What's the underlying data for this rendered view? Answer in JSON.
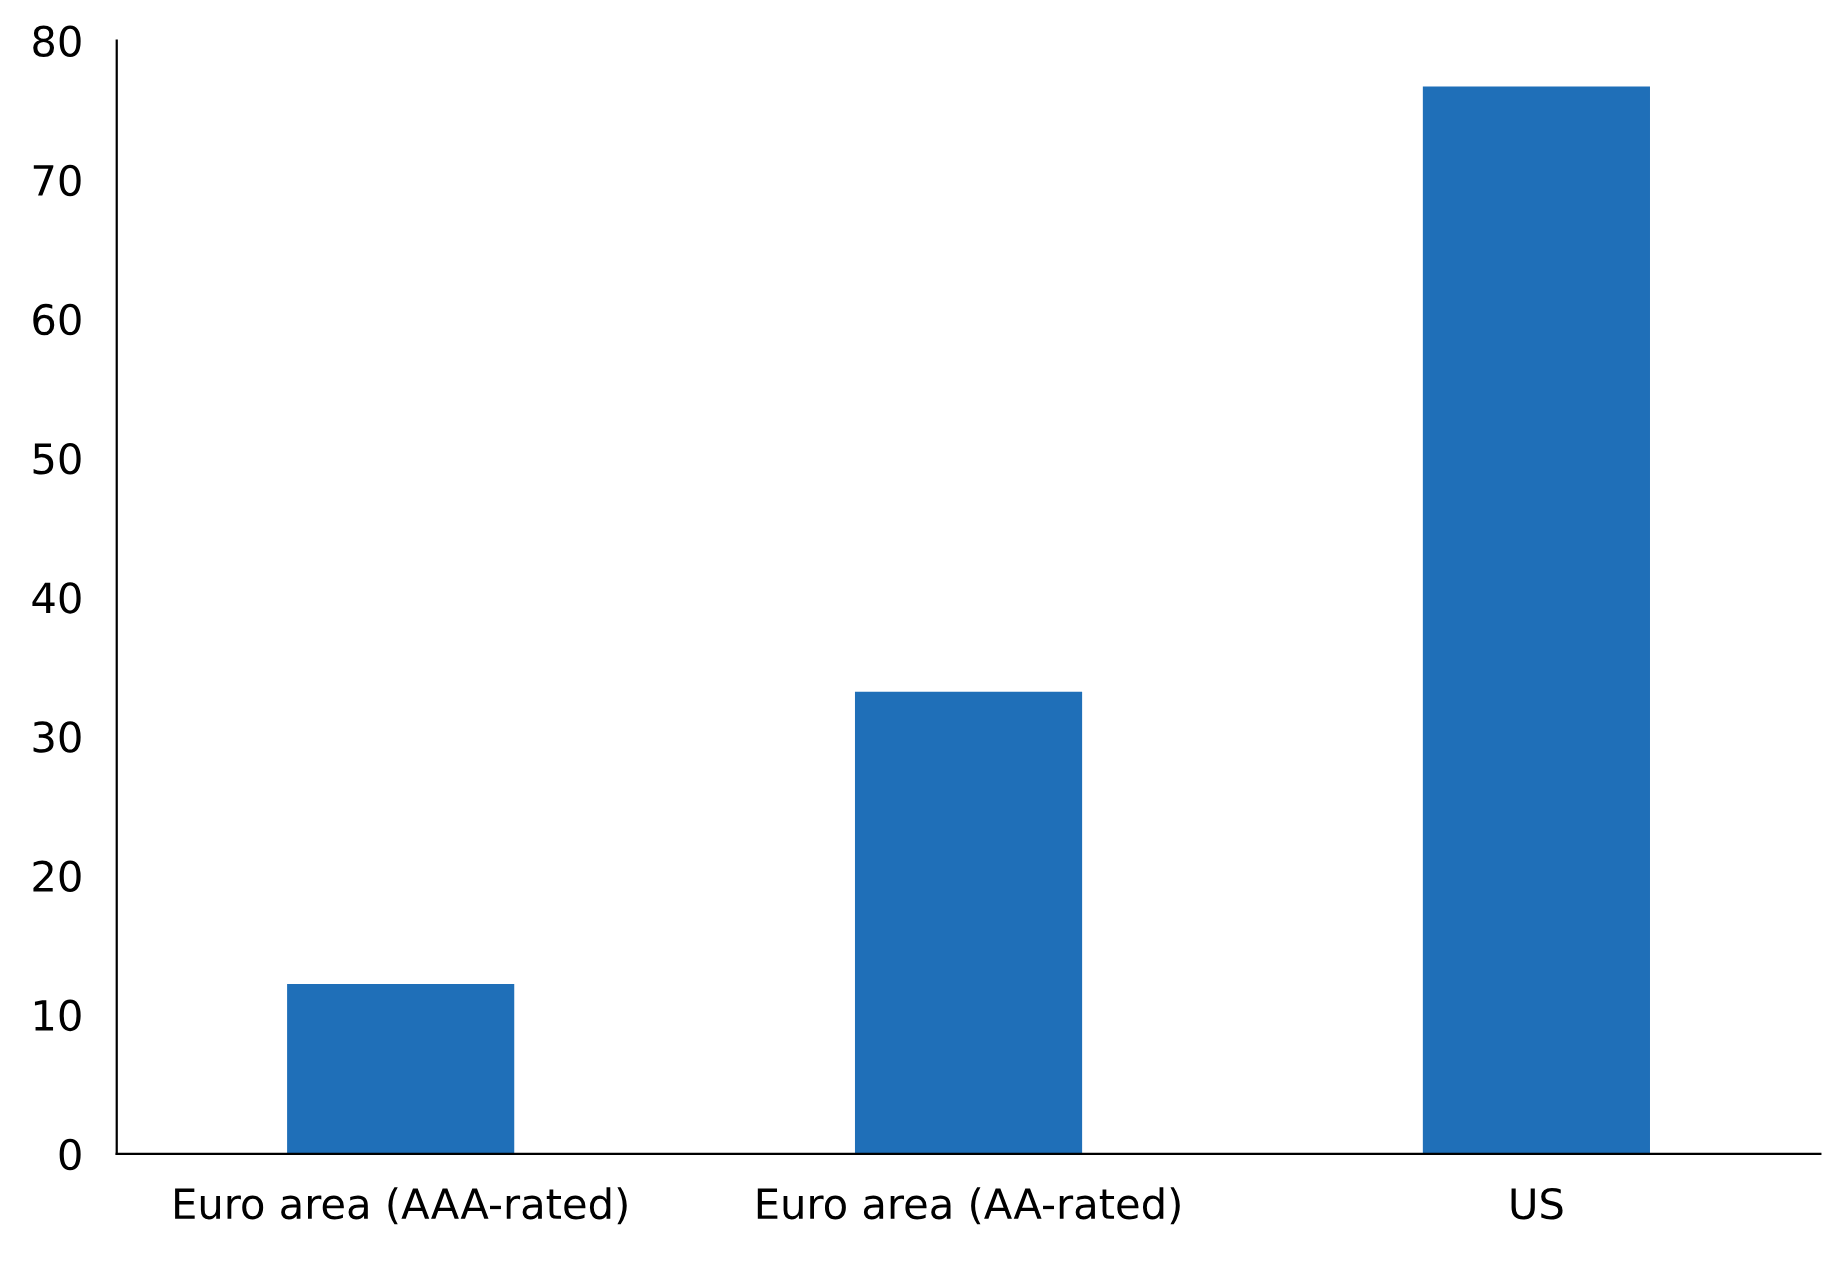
{
  "chart_data": {
    "type": "bar",
    "categories": [
      "Euro area (AAA-rated)",
      "Euro area (AA-rated)",
      "US"
    ],
    "values": [
      12.2,
      33.2,
      76.7
    ],
    "color": "#1f6fb8",
    "ylim": [
      0,
      80
    ],
    "yticks": [
      0,
      10,
      20,
      30,
      40,
      50,
      60,
      70,
      80
    ],
    "grid": false,
    "legend": false
  }
}
